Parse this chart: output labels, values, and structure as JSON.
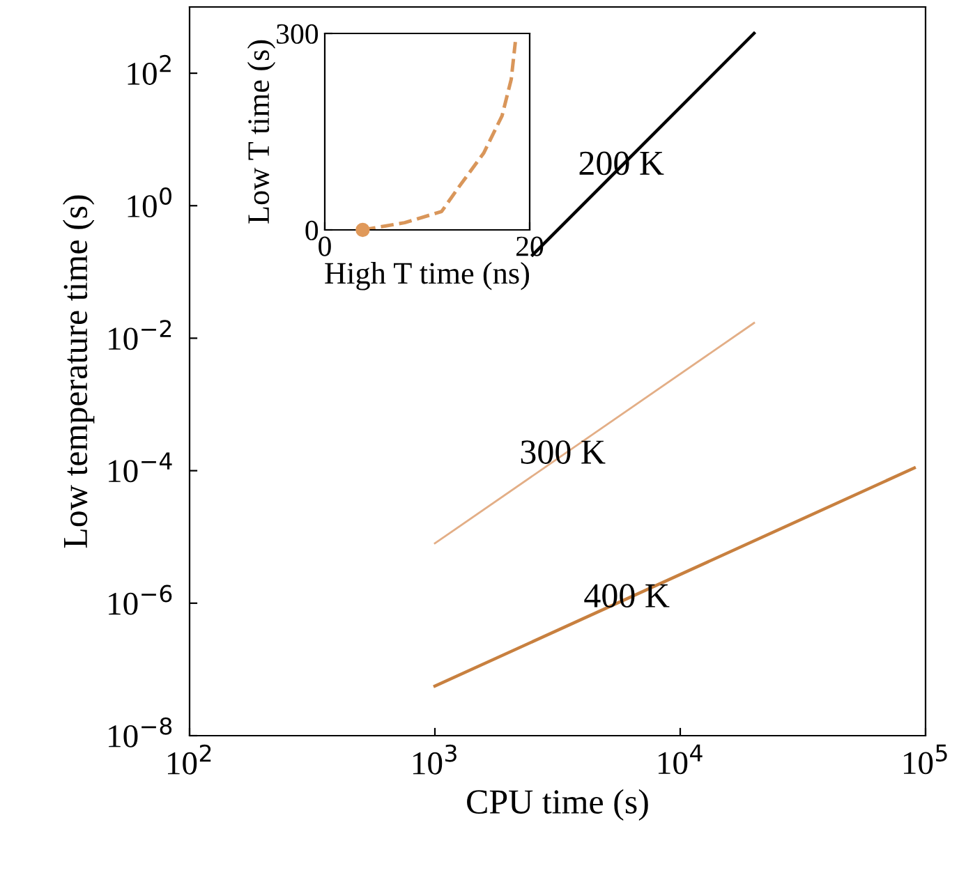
{
  "chart_data": [
    {
      "type": "line",
      "xlabel": "CPU time (s)",
      "ylabel": "Low temperature time (s)",
      "log": "xy",
      "grid": false,
      "legend": false,
      "xlim": [
        100,
        100000
      ],
      "ylim": [
        1e-08,
        1000
      ],
      "xticks": [
        {
          "value": 100,
          "label": "10$^{2}$"
        },
        {
          "value": 1000,
          "label": "10$^{3}$"
        },
        {
          "value": 10000,
          "label": "10$^{4}$"
        },
        {
          "value": 100000,
          "label": "10$^{5}$"
        }
      ],
      "yticks": [
        {
          "value": 1e-08,
          "label": "10$^{−8}$"
        },
        {
          "value": 1e-06,
          "label": "10$^{−6}$"
        },
        {
          "value": 0.0001,
          "label": "10$^{−4}$"
        },
        {
          "value": 0.01,
          "label": "10$^{−2}$"
        },
        {
          "value": 1,
          "label": "10$^{0}$"
        },
        {
          "value": 100,
          "label": "10$^{2}$"
        }
      ],
      "series": [
        {
          "name": "200 K",
          "color": "#000000",
          "x": [
            2500,
            20000
          ],
          "values": [
            0.18,
            400
          ]
        },
        {
          "name": "300 K",
          "color": "#e3ae86",
          "x": [
            1000,
            20000
          ],
          "values": [
            8e-06,
            0.017
          ]
        },
        {
          "name": "400 K",
          "color": "#c8803f",
          "x": [
            1000,
            90000
          ],
          "values": [
            5.6e-08,
            0.00011
          ]
        }
      ]
    },
    {
      "type": "line",
      "xlabel": "High T time (ns)",
      "ylabel": "Low T time (s)",
      "grid": false,
      "legend": false,
      "xlim": [
        0,
        20
      ],
      "ylim": [
        0,
        300
      ],
      "xticks": [
        0,
        20
      ],
      "yticks": [
        0,
        300
      ],
      "series": [
        {
          "color": "#d9965a",
          "line_style": "dashed",
          "x": [
            3.7,
            7.8,
            11.4,
            13.2,
            15.5,
            17.3,
            18.2,
            18.6
          ],
          "values": [
            0,
            11,
            28,
            68,
            117,
            174,
            230,
            287
          ]
        },
        {
          "type": "scatter",
          "marker": "circle",
          "color": "#e0995a",
          "x": [
            3.7
          ],
          "values": [
            0
          ]
        }
      ]
    }
  ]
}
